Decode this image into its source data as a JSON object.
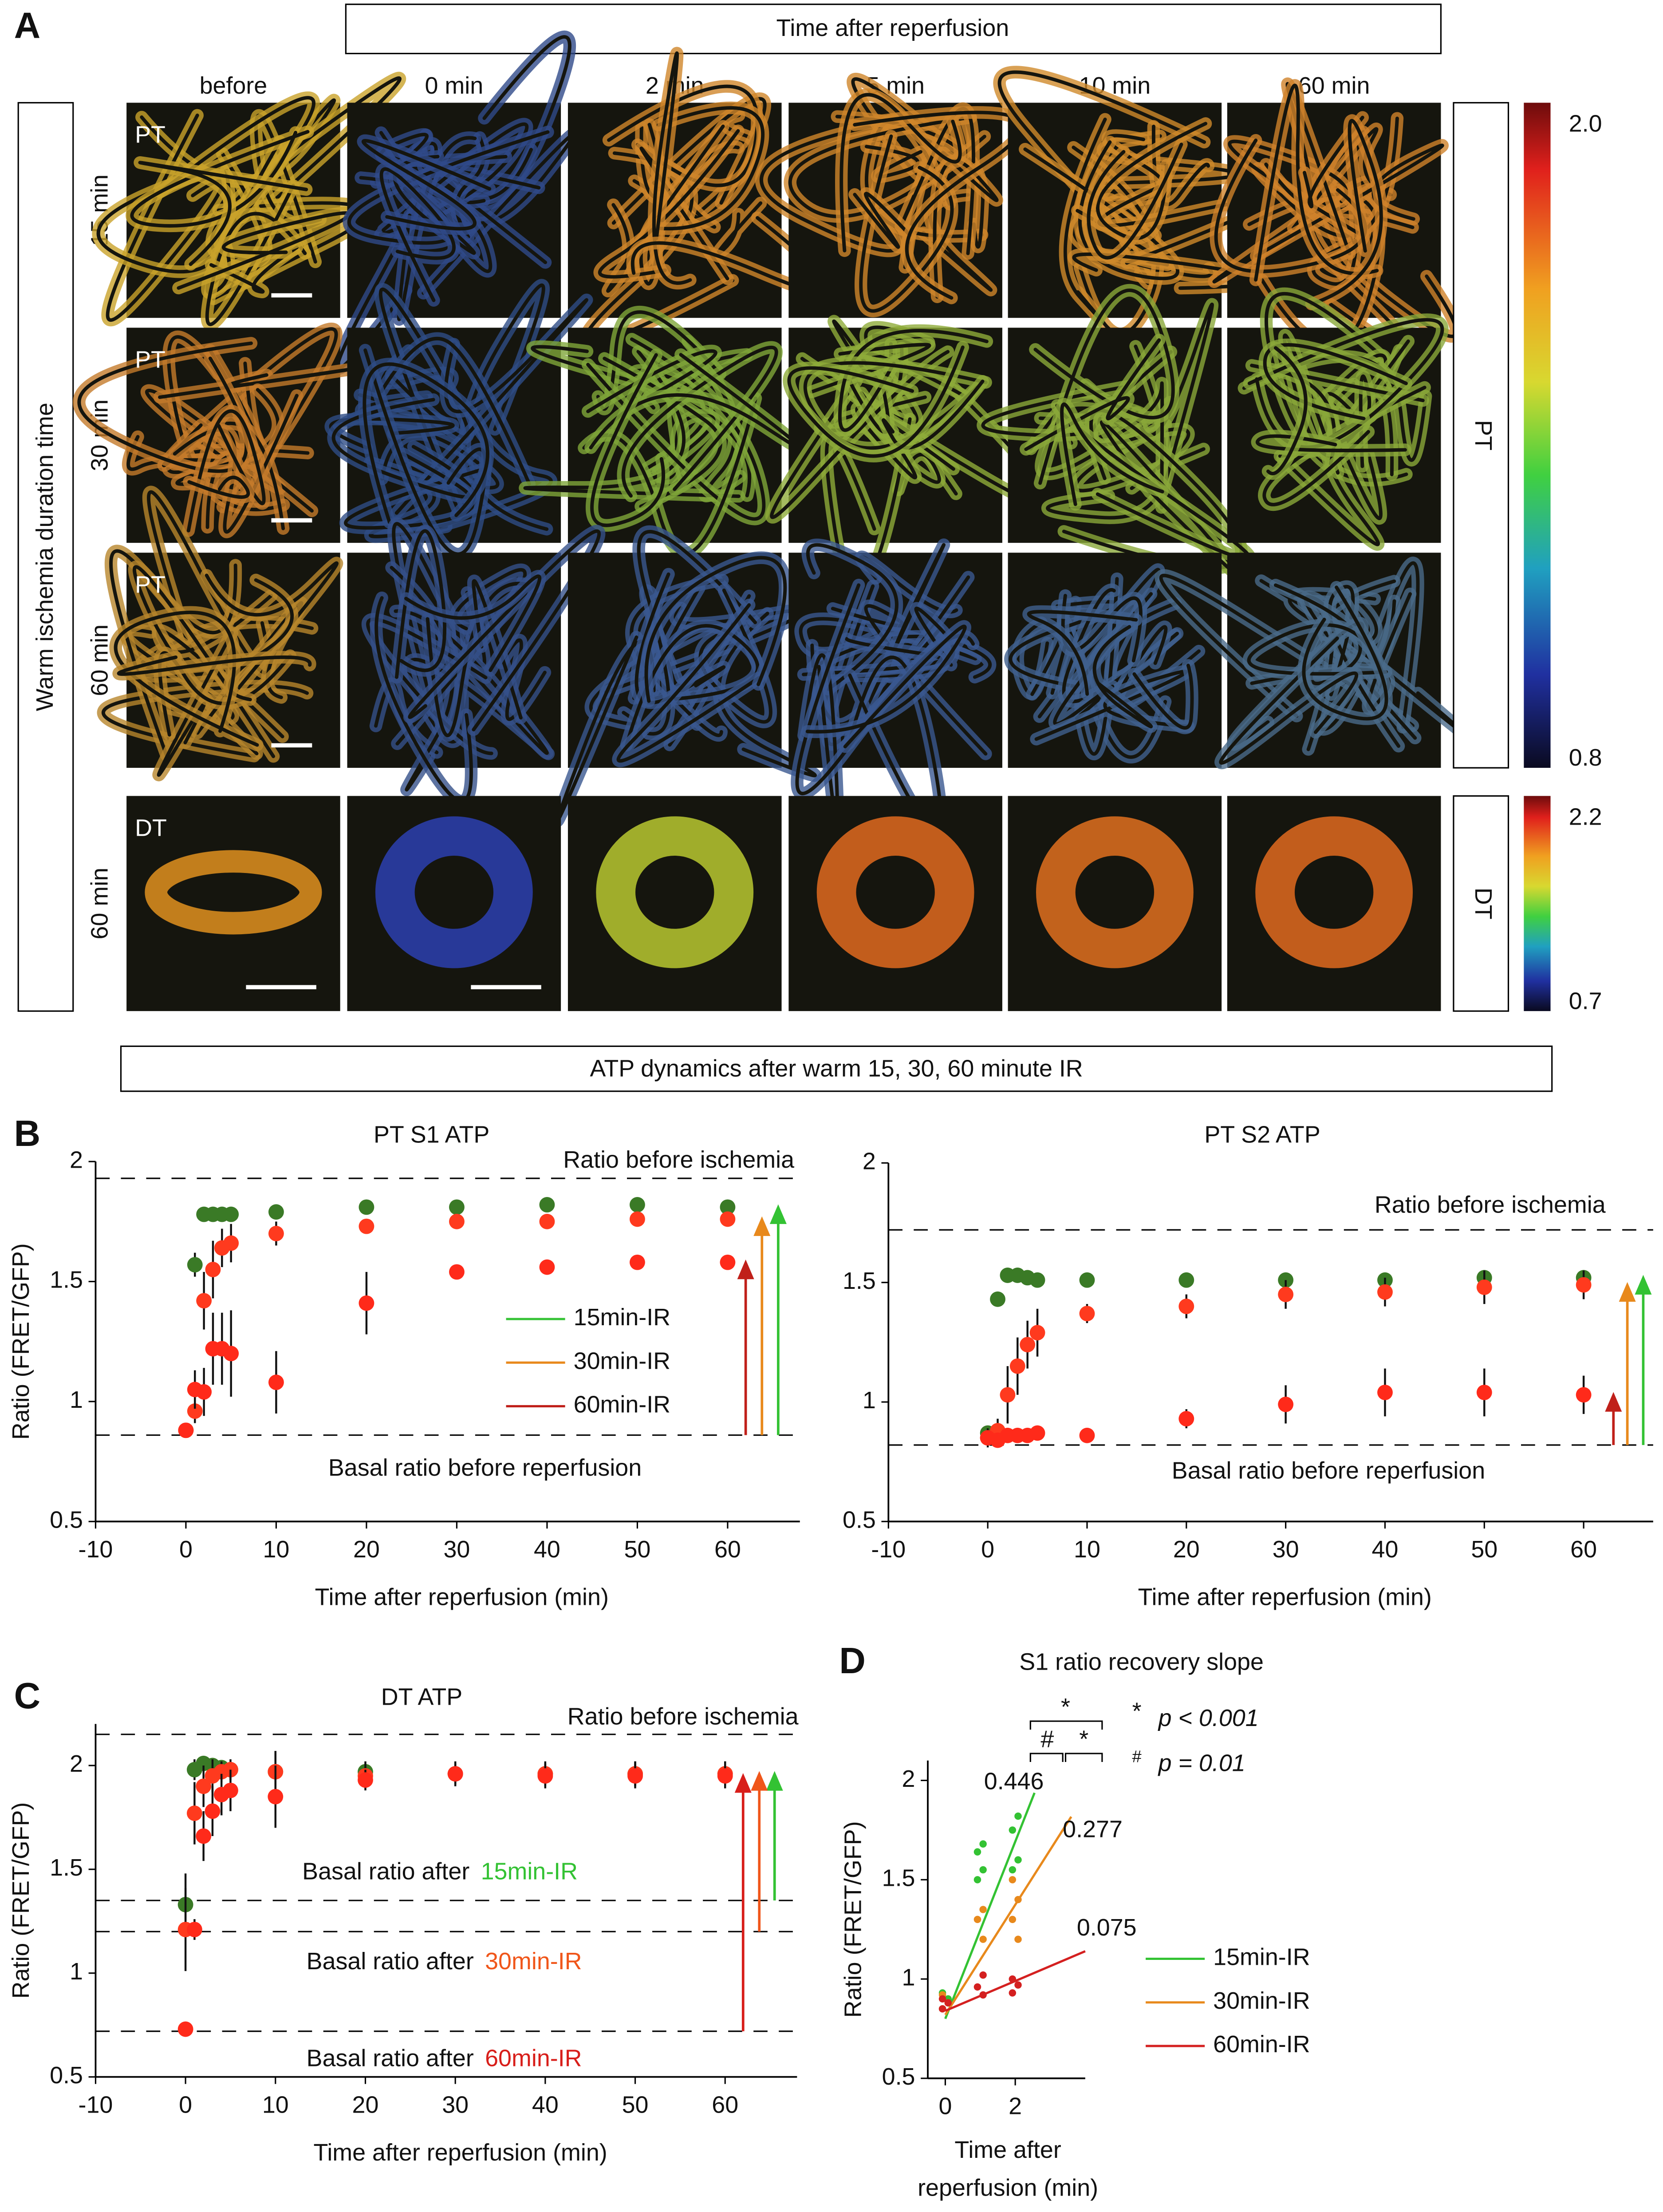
{
  "panel_a": {
    "letter": "A",
    "header": "Time after reperfusion",
    "columns": [
      "before",
      "0 min",
      "2 min",
      "5 min",
      "10 min",
      "60 min"
    ],
    "row_axis_label": "Warm ischemia duration time",
    "rows": [
      {
        "label": "15 min",
        "segment": "PT"
      },
      {
        "label": "30 min",
        "segment": "PT"
      },
      {
        "label": "60 min",
        "segment": "PT"
      },
      {
        "label": "60 min",
        "segment": "DT"
      }
    ],
    "colorbars": [
      {
        "segment": "PT",
        "max": "2.0",
        "min": "0.8"
      },
      {
        "segment": "DT",
        "max": "2.2",
        "min": "0.7"
      }
    ]
  },
  "banner": "ATP dynamics after warm 15, 30, 60 minute IR",
  "panel_letters": [
    "B",
    "C",
    "D"
  ],
  "chart_data": [
    {
      "type": "scatter",
      "title": "PT S1 ATP",
      "x_label": "Time after reperfusion (min)",
      "y_label": "Ratio (FRET/GFP)",
      "x": [
        0,
        1,
        2,
        3,
        4,
        5,
        10,
        20,
        30,
        40,
        50,
        60
      ],
      "series": [
        {
          "name": "15min-IR",
          "color": "#33c233",
          "marker_color": "#3a7a26",
          "values": [
            0.88,
            1.57,
            1.78,
            1.78,
            1.78,
            1.78,
            1.79,
            1.81,
            1.81,
            1.82,
            1.82,
            1.81
          ],
          "errors": [
            0.02,
            0.05,
            0.03,
            0.02,
            0.02,
            0.02,
            0.02,
            0.02,
            0.02,
            0.02,
            0.02,
            0.02
          ]
        },
        {
          "name": "30min-IR",
          "color": "#e8891c",
          "marker_color": "#ff3a1e",
          "values": [
            0.88,
            0.96,
            1.42,
            1.55,
            1.64,
            1.66,
            1.7,
            1.73,
            1.75,
            1.75,
            1.76,
            1.76
          ],
          "errors": [
            0.03,
            0.05,
            0.12,
            0.12,
            0.08,
            0.08,
            0.05,
            0.03,
            0.03,
            0.03,
            0.03,
            0.03
          ]
        },
        {
          "name": "60min-IR",
          "color": "#c0201a",
          "marker_color": "#ff2a1a",
          "values": [
            0.88,
            1.05,
            1.04,
            1.22,
            1.22,
            1.2,
            1.08,
            1.41,
            1.54,
            1.56,
            1.58,
            1.58
          ],
          "errors": [
            0.03,
            0.08,
            0.1,
            0.15,
            0.15,
            0.18,
            0.13,
            0.13,
            0.02,
            0.03,
            0.03,
            0.03
          ]
        }
      ],
      "reference_lines": [
        {
          "value": 1.93,
          "label": "Ratio before ischemia"
        },
        {
          "value": 0.86,
          "label": "Basal ratio before reperfusion"
        }
      ],
      "xlim": [
        -10,
        68
      ],
      "ylim": [
        0.5,
        2
      ],
      "xticks": [
        -10,
        0,
        10,
        20,
        30,
        40,
        50,
        60
      ],
      "yticks": [
        0.5,
        1,
        1.5,
        2
      ],
      "legend": true,
      "arrows": true
    },
    {
      "type": "scatter",
      "title": "PT S2 ATP",
      "x_label": "Time after reperfusion (min)",
      "x": [
        0,
        1,
        2,
        3,
        4,
        5,
        10,
        20,
        30,
        40,
        50,
        60
      ],
      "series": [
        {
          "name": "15min-IR",
          "color": "#33c233",
          "marker_color": "#3a7a26",
          "values": [
            0.87,
            1.43,
            1.53,
            1.53,
            1.52,
            1.51,
            1.51,
            1.51,
            1.51,
            1.51,
            1.52,
            1.52
          ],
          "errors": [
            0.03,
            0.03,
            0.02,
            0.02,
            0.02,
            0.02,
            0.02,
            0.02,
            0.02,
            0.03,
            0.03,
            0.03
          ]
        },
        {
          "name": "30min-IR",
          "color": "#e8891c",
          "marker_color": "#ff3a1e",
          "values": [
            0.85,
            0.88,
            1.03,
            1.15,
            1.24,
            1.29,
            1.37,
            1.4,
            1.45,
            1.46,
            1.48,
            1.49
          ],
          "errors": [
            0.03,
            0.05,
            0.12,
            0.12,
            0.1,
            0.1,
            0.04,
            0.05,
            0.06,
            0.06,
            0.07,
            0.06
          ]
        },
        {
          "name": "60min-IR",
          "color": "#c0201a",
          "marker_color": "#ff2a1a",
          "values": [
            0.85,
            0.84,
            0.86,
            0.86,
            0.86,
            0.87,
            0.86,
            0.93,
            0.99,
            1.04,
            1.04,
            1.03
          ],
          "errors": [
            0.04,
            0.03,
            0.03,
            0.03,
            0.03,
            0.03,
            0.02,
            0.04,
            0.08,
            0.1,
            0.1,
            0.08
          ]
        }
      ],
      "reference_lines": [
        {
          "value": 1.72,
          "label": "Ratio before ischemia"
        },
        {
          "value": 0.82,
          "label": "Basal ratio before reperfusion"
        }
      ],
      "xlim": [
        -10,
        67
      ],
      "ylim": [
        0.5,
        2
      ],
      "xticks": [
        -10,
        0,
        10,
        20,
        30,
        40,
        50,
        60
      ],
      "yticks": [
        0.5,
        1,
        1.5,
        2
      ],
      "legend": false,
      "arrows": true
    },
    {
      "type": "scatter",
      "title": "DT ATP",
      "x_label": "Time after reperfusion (min)",
      "y_label": "Ratio (FRET/GFP)",
      "x": [
        0,
        1,
        2,
        3,
        4,
        5,
        10,
        20,
        30,
        40,
        50,
        60
      ],
      "series": [
        {
          "name": "15min-IR",
          "color": "#33c233",
          "marker_color": "#3a7a26",
          "values": [
            1.33,
            1.98,
            2.01,
            2.0,
            1.99,
            1.98,
            1.97,
            1.97,
            1.96,
            1.96,
            1.96,
            1.96
          ],
          "errors": [
            0.15,
            0.05,
            0.03,
            0.03,
            0.03,
            0.03,
            0.1,
            0.05,
            0.05,
            0.05,
            0.06,
            0.06
          ]
        },
        {
          "name": "30min-IR",
          "color": "#f0561a",
          "marker_color": "#ff3a1e",
          "values": [
            1.21,
            1.77,
            1.9,
            1.95,
            1.97,
            1.98,
            1.97,
            1.95,
            1.96,
            1.96,
            1.96,
            1.96
          ],
          "errors": [
            0.2,
            0.15,
            0.1,
            0.08,
            0.05,
            0.05,
            0.1,
            0.06,
            0.06,
            0.06,
            0.06,
            0.06
          ]
        },
        {
          "name": "60min-IR",
          "color": "#d81e1a",
          "marker_color": "#ff2a1a",
          "values": [
            0.73,
            1.21,
            1.66,
            1.78,
            1.86,
            1.88,
            1.85,
            1.93,
            1.96,
            1.95,
            1.95,
            1.95
          ],
          "errors": [
            0.01,
            0.05,
            0.12,
            0.12,
            0.1,
            0.1,
            0.15,
            0.05,
            0.05,
            0.06,
            0.06,
            0.06
          ]
        }
      ],
      "reference_lines": [
        {
          "value": 2.15,
          "label": "Ratio before ischemia"
        },
        {
          "value": 1.35,
          "label": "Basal ratio after",
          "series": 0
        },
        {
          "value": 1.2,
          "label": "Basal ratio after",
          "series": 1
        },
        {
          "value": 0.72,
          "label": "Basal ratio after",
          "series": 2
        }
      ],
      "xlim": [
        -10,
        68
      ],
      "ylim": [
        0.5,
        2.2
      ],
      "xticks": [
        -10,
        0,
        10,
        20,
        30,
        40,
        50,
        60
      ],
      "yticks": [
        0.5,
        1,
        1.5,
        2
      ],
      "legend": false,
      "arrows": true
    },
    {
      "type": "scatter",
      "title": "S1 ratio recovery slope",
      "x_label": [
        "Time  after",
        "reperfusion (min)"
      ],
      "y_label": "Ratio (FRET/GFP)",
      "series": [
        {
          "name": "15min-IR",
          "color": "#33c233",
          "x": [
            0,
            0,
            0,
            1,
            1,
            1,
            1,
            2,
            2,
            2,
            2
          ],
          "values": [
            0.85,
            0.9,
            0.93,
            1.68,
            1.64,
            1.55,
            1.5,
            1.82,
            1.75,
            1.6,
            1.55
          ],
          "slope": 0.446,
          "intercept": 0.8
        },
        {
          "name": "30min-IR",
          "color": "#e8891c",
          "x": [
            0,
            0,
            0,
            1,
            1,
            1,
            2,
            2,
            2,
            2
          ],
          "values": [
            0.85,
            0.88,
            0.92,
            1.35,
            1.3,
            1.2,
            1.5,
            1.4,
            1.3,
            1.2
          ],
          "slope": 0.277,
          "intercept": 0.82
        },
        {
          "name": "60min-IR",
          "color": "#d42020",
          "x": [
            0,
            0,
            0,
            1,
            1,
            1,
            2,
            2,
            2
          ],
          "values": [
            0.85,
            0.88,
            0.9,
            1.02,
            0.96,
            0.92,
            1.0,
            0.97,
            0.93
          ],
          "slope": 0.075,
          "intercept": 0.84
        }
      ],
      "brackets": [
        "*",
        "#",
        "*"
      ],
      "significance": [
        {
          "symbol": "*",
          "text": "p < 0.001"
        },
        {
          "symbol": "#",
          "text": "p = 0.01"
        }
      ],
      "xlim": [
        -0.5,
        4
      ],
      "ylim": [
        0.5,
        2.1
      ],
      "xticks": [
        0,
        2
      ],
      "yticks": [
        0.5,
        1,
        1.5,
        2
      ],
      "legend": true
    }
  ]
}
